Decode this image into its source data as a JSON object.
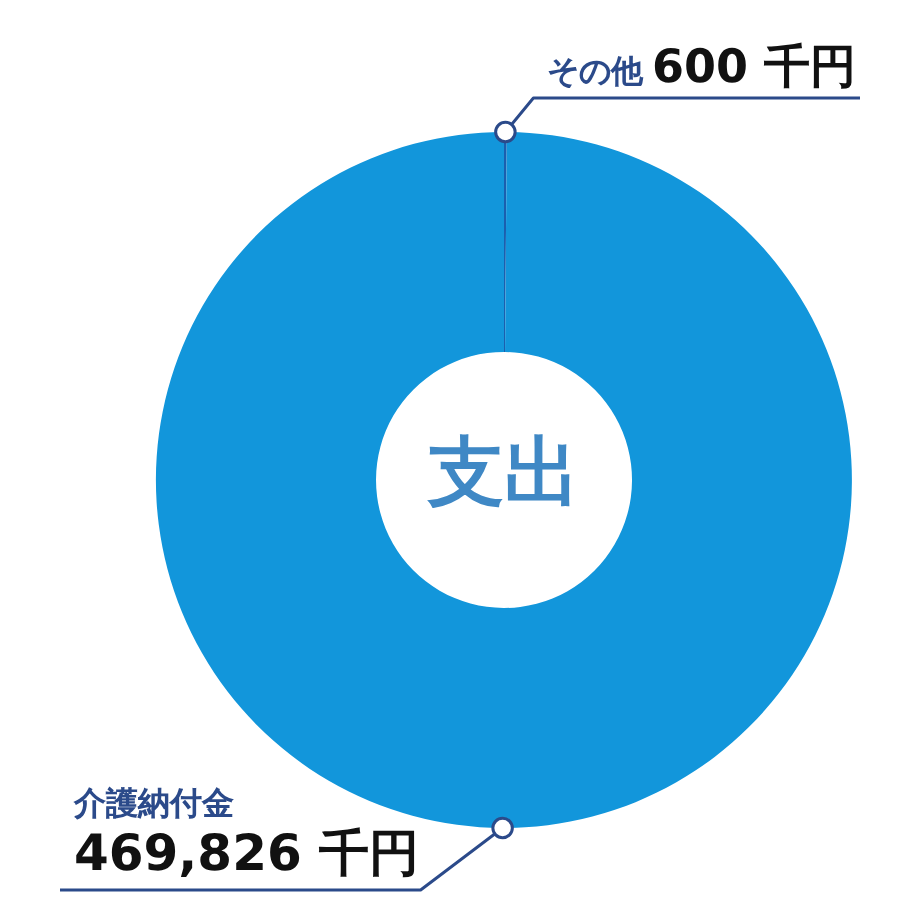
{
  "chart_data": {
    "type": "donut",
    "title": "支出",
    "categories": [
      "その他",
      "介護納付金"
    ],
    "values": [
      600,
      469826
    ],
    "colors": [
      "#1b5fae",
      "#1296db"
    ],
    "value_labels": [
      "600 千円",
      "469,826 千円"
    ]
  }
}
